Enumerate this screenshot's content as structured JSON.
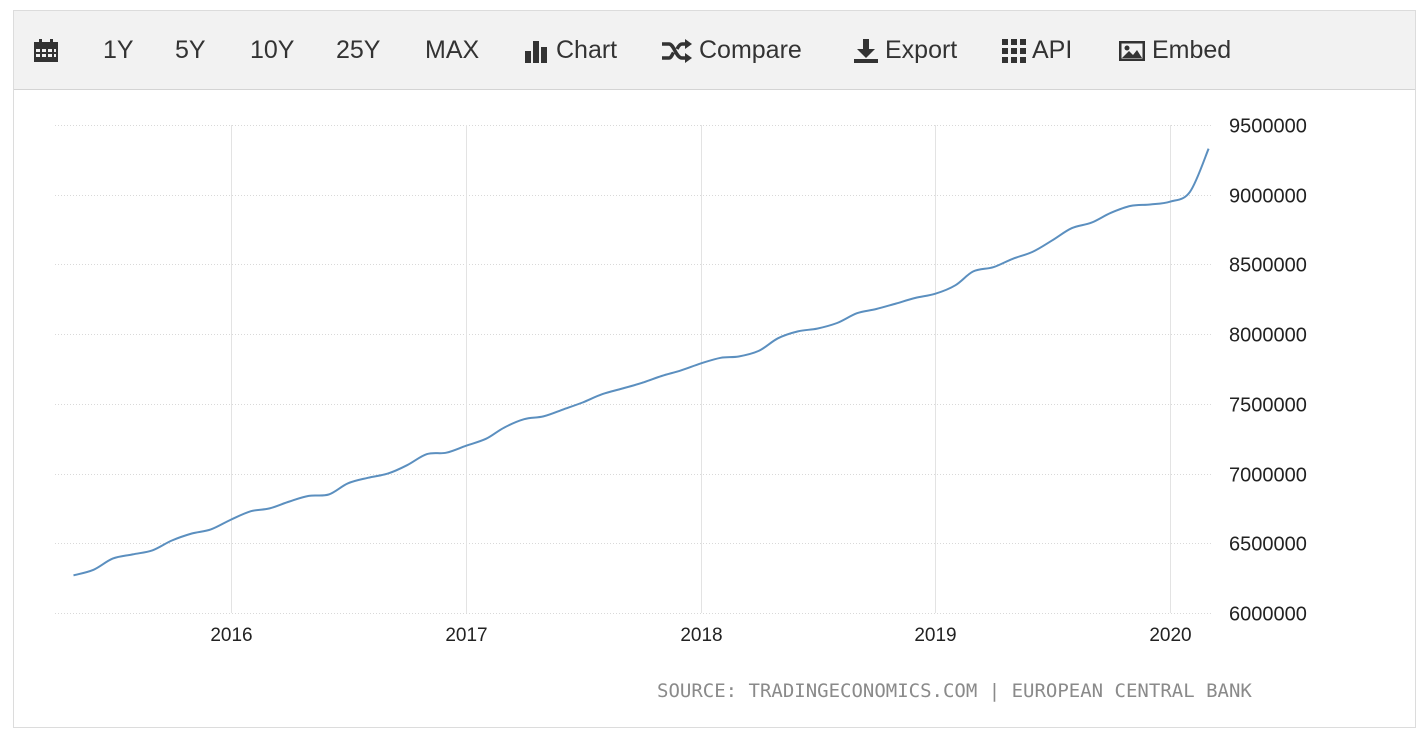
{
  "toolbar": {
    "calendar_icon": "calendar-icon",
    "range_1y": "1Y",
    "range_5y": "5Y",
    "range_10y": "10Y",
    "range_25y": "25Y",
    "range_max": "MAX",
    "chart_label": "Chart",
    "compare_label": "Compare",
    "export_label": "Export",
    "api_label": "API",
    "embed_label": "Embed"
  },
  "source_text": "SOURCE: TRADINGECONOMICS.COM | EUROPEAN CENTRAL BANK",
  "chart_data": {
    "type": "line",
    "title": "",
    "xlabel": "",
    "ylabel": "",
    "y_axis_position": "right",
    "ylim": [
      6000000,
      9500000
    ],
    "y_ticks": [
      {
        "value": 9500000,
        "label": "9500000"
      },
      {
        "value": 9000000,
        "label": "9000000"
      },
      {
        "value": 8500000,
        "label": "8500000"
      },
      {
        "value": 8000000,
        "label": "8000000"
      },
      {
        "value": 7500000,
        "label": "7500000"
      },
      {
        "value": 7000000,
        "label": "7000000"
      },
      {
        "value": 6500000,
        "label": "6500000"
      },
      {
        "value": 6000000,
        "label": "6000000"
      }
    ],
    "xlim": [
      "2015-04-15",
      "2020-03-15"
    ],
    "x_ticks": [
      {
        "value": "2016-01-01",
        "label": "2016"
      },
      {
        "value": "2017-01-01",
        "label": "2017"
      },
      {
        "value": "2018-01-01",
        "label": "2018"
      },
      {
        "value": "2019-01-01",
        "label": "2019"
      },
      {
        "value": "2020-01-01",
        "label": "2020"
      }
    ],
    "grid": true,
    "line_color": "#5b8fbf",
    "series": [
      {
        "x": [
          "2015-05",
          "2015-06",
          "2015-07",
          "2015-08",
          "2015-09",
          "2015-10",
          "2015-11",
          "2015-12",
          "2016-01",
          "2016-02",
          "2016-03",
          "2016-04",
          "2016-05",
          "2016-06",
          "2016-07",
          "2016-08",
          "2016-09",
          "2016-10",
          "2016-11",
          "2016-12",
          "2017-01",
          "2017-02",
          "2017-03",
          "2017-04",
          "2017-05",
          "2017-06",
          "2017-07",
          "2017-08",
          "2017-09",
          "2017-10",
          "2017-11",
          "2017-12",
          "2018-01",
          "2018-02",
          "2018-03",
          "2018-04",
          "2018-05",
          "2018-06",
          "2018-07",
          "2018-08",
          "2018-09",
          "2018-10",
          "2018-11",
          "2018-12",
          "2019-01",
          "2019-02",
          "2019-03",
          "2019-04",
          "2019-05",
          "2019-06",
          "2019-07",
          "2019-08",
          "2019-09",
          "2019-10",
          "2019-11",
          "2019-12",
          "2020-01",
          "2020-02",
          "2020-03"
        ],
        "values": [
          6270000,
          6310000,
          6390000,
          6420000,
          6450000,
          6520000,
          6570000,
          6600000,
          6670000,
          6730000,
          6750000,
          6800000,
          6840000,
          6850000,
          6930000,
          6970000,
          7000000,
          7060000,
          7140000,
          7150000,
          7200000,
          7250000,
          7330000,
          7390000,
          7410000,
          7460000,
          7510000,
          7570000,
          7610000,
          7650000,
          7700000,
          7740000,
          7790000,
          7830000,
          7840000,
          7880000,
          7970000,
          8020000,
          8040000,
          8080000,
          8150000,
          8180000,
          8220000,
          8260000,
          8290000,
          8350000,
          8450000,
          8480000,
          8540000,
          8590000,
          8670000,
          8760000,
          8800000,
          8870000,
          8920000,
          8930000,
          8950000,
          9020000,
          9330000
        ]
      }
    ]
  }
}
